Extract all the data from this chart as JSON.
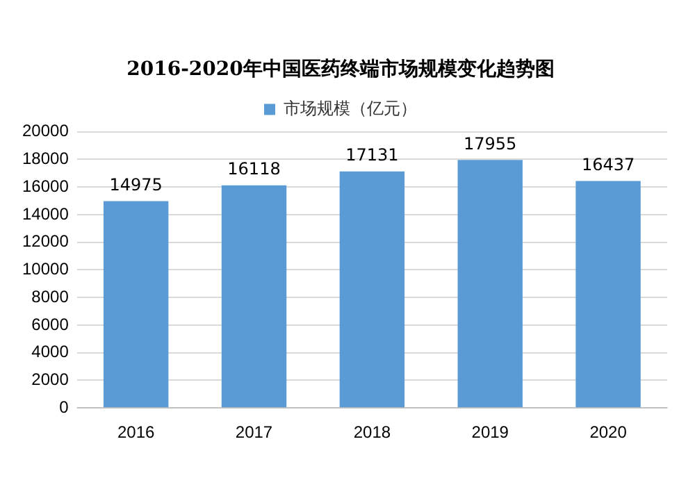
{
  "chart_data": {
    "type": "bar",
    "title": "2016-2020年中国医药终端市场规模变化趋势图",
    "categories": [
      "2016",
      "2017",
      "2018",
      "2019",
      "2020"
    ],
    "series": [
      {
        "name": "市场规模（亿元）",
        "color": "#5b9bd5",
        "values": [
          14975,
          16118,
          17131,
          17955,
          16437
        ]
      }
    ],
    "ylim": [
      0,
      20000
    ],
    "yticks": [
      0,
      2000,
      4000,
      6000,
      8000,
      10000,
      12000,
      14000,
      16000,
      18000,
      20000
    ],
    "grid": "y",
    "legend": "top",
    "data_labels": true
  }
}
